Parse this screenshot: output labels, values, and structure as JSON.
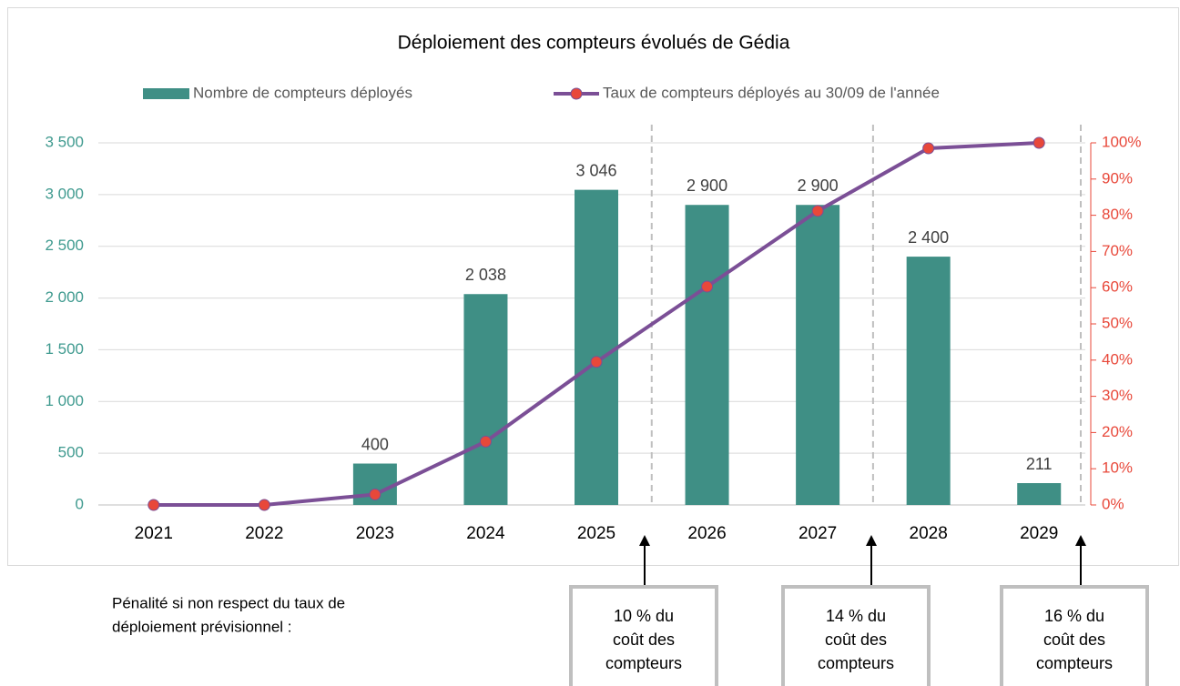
{
  "chart_data": {
    "type": "bar",
    "title": "Déploiement des compteurs évolués de Gédia",
    "categories": [
      "2021",
      "2022",
      "2023",
      "2024",
      "2025",
      "2026",
      "2027",
      "2028",
      "2029"
    ],
    "series": [
      {
        "name": "Nombre de compteurs déployés",
        "color": "#3f8f85",
        "type": "bar",
        "values": [
          0,
          0,
          400,
          2038,
          3046,
          2900,
          2900,
          2400,
          211
        ],
        "value_labels": [
          null,
          null,
          "400",
          "2 038",
          "3 046",
          "2 900",
          "2 900",
          "2 400",
          "211"
        ]
      },
      {
        "name": "Taux de compteurs déployés au 30/09 de l'année",
        "color": "#7b4f96",
        "marker_color": "#e8483a",
        "type": "line",
        "axis": "y2",
        "values": [
          0,
          0,
          2.9,
          17.5,
          39.5,
          60.3,
          81.2,
          98.5,
          100
        ]
      }
    ],
    "ylim": [
      0,
      3500
    ],
    "yticks": [
      {
        "value": 0,
        "label": "0"
      },
      {
        "value": 500,
        "label": "500"
      },
      {
        "value": 1000,
        "label": "1 000"
      },
      {
        "value": 1500,
        "label": "1 500"
      },
      {
        "value": 2000,
        "label": "2 000"
      },
      {
        "value": 2500,
        "label": "2 500"
      },
      {
        "value": 3000,
        "label": "3 000"
      },
      {
        "value": 3500,
        "label": "3 500"
      }
    ],
    "y_axis_color": "#3f9a8f",
    "y2lim": [
      0,
      100
    ],
    "y2ticks": [
      {
        "value": 0,
        "label": "0%"
      },
      {
        "value": 10,
        "label": "10%"
      },
      {
        "value": 20,
        "label": "20%"
      },
      {
        "value": 30,
        "label": "30%"
      },
      {
        "value": 40,
        "label": "40%"
      },
      {
        "value": 50,
        "label": "50%"
      },
      {
        "value": 60,
        "label": "60%"
      },
      {
        "value": 70,
        "label": "70%"
      },
      {
        "value": 80,
        "label": "80%"
      },
      {
        "value": 90,
        "label": "90%"
      },
      {
        "value": 100,
        "label": "100%"
      }
    ],
    "y2_axis_color": "#e8483a",
    "grid": true,
    "legend": "top",
    "penalty_note": [
      "Pénalité si non respect du taux de",
      "déploiement prévisionnel :"
    ],
    "penalties": [
      {
        "lines": [
          "10 % du",
          "coût des",
          "compteurs"
        ]
      },
      {
        "lines": [
          "14 % du",
          "coût des",
          "compteurs"
        ]
      },
      {
        "lines": [
          "16 % du",
          "coût des",
          "compteurs"
        ]
      }
    ]
  }
}
